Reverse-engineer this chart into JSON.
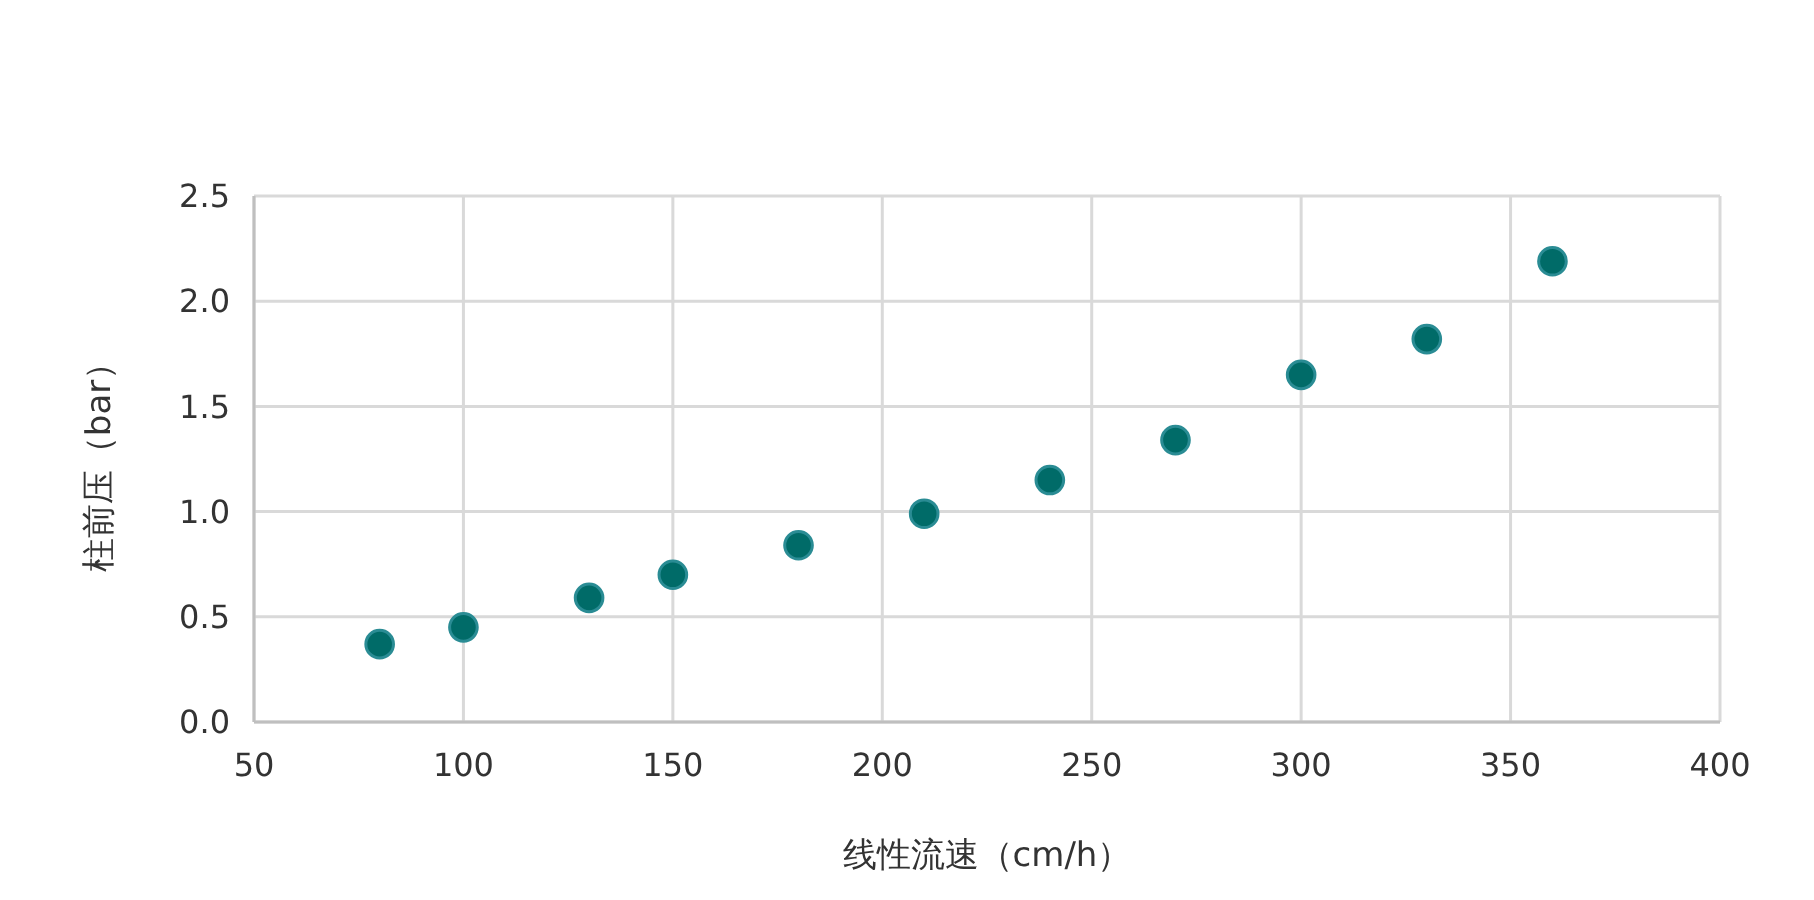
{
  "chart_data": {
    "type": "scatter",
    "xlabel": "线性流速（cm/h）",
    "ylabel": "柱前压（bar）",
    "x": [
      80,
      100,
      130,
      150,
      180,
      210,
      240,
      270,
      300,
      330,
      360
    ],
    "series": [
      {
        "color": "#006b68",
        "values": [
          0.37,
          0.45,
          0.59,
          0.7,
          0.84,
          0.99,
          1.15,
          1.34,
          1.65,
          1.82,
          2.19
        ]
      }
    ],
    "xlim": [
      50,
      400
    ],
    "xticks": [
      50,
      100,
      150,
      200,
      250,
      300,
      350,
      400
    ],
    "ylim": [
      0,
      2.5
    ],
    "yticks": [
      {
        "value": 0,
        "label": "0.0"
      },
      {
        "value": 0.5,
        "label": "0.5"
      },
      {
        "value": 1,
        "label": "1.0"
      },
      {
        "value": 1.5,
        "label": "1.5"
      },
      {
        "value": 2,
        "label": "2.0"
      },
      {
        "value": 2.5,
        "label": "2.5"
      }
    ],
    "grid": true,
    "marker": "circle"
  }
}
